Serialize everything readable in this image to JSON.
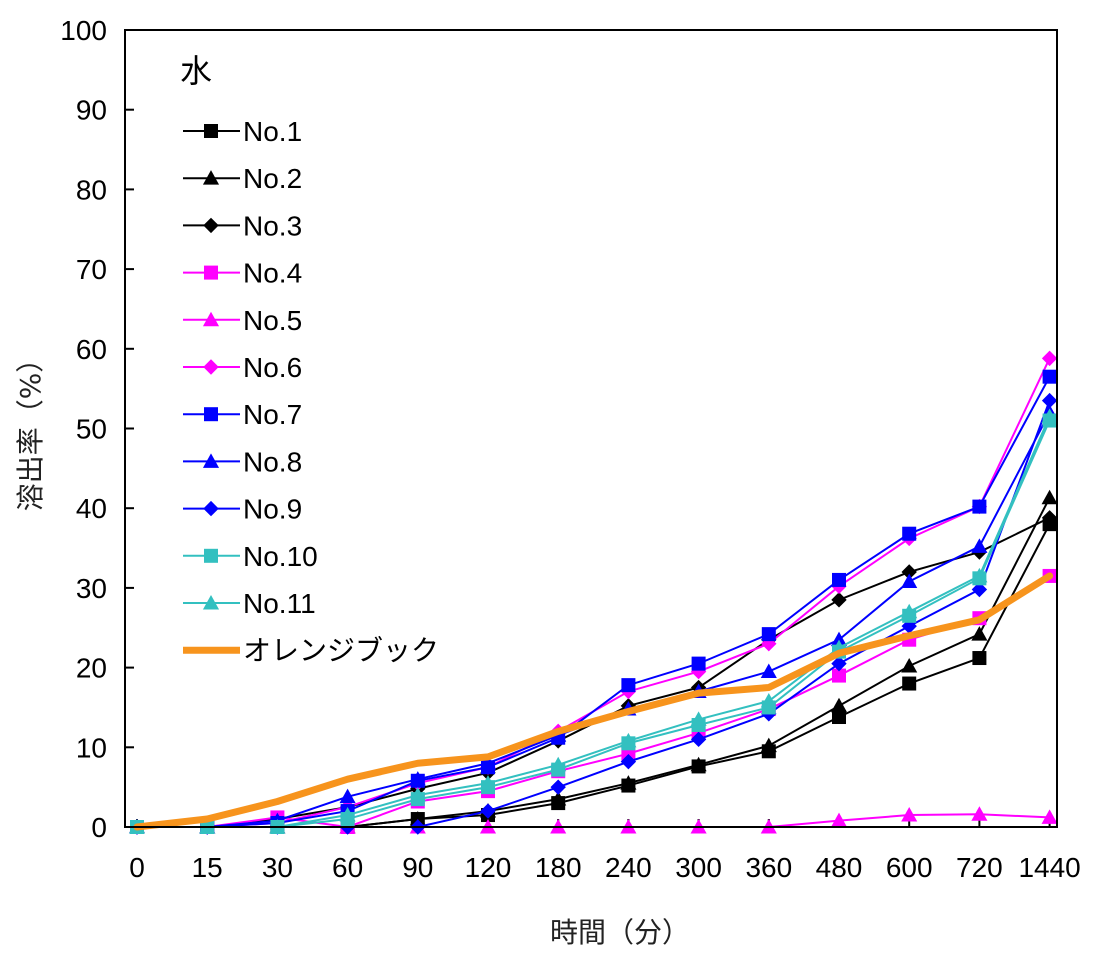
{
  "chart_data": {
    "type": "line",
    "title": "水",
    "xlabel": "時間（分）",
    "ylabel": "溶出率（%）",
    "ylim": [
      0,
      100
    ],
    "yticks": [
      0,
      10,
      20,
      30,
      40,
      50,
      60,
      70,
      80,
      90,
      100
    ],
    "categories": [
      "0",
      "15",
      "30",
      "60",
      "90",
      "120",
      "180",
      "240",
      "300",
      "360",
      "480",
      "600",
      "720",
      "1440"
    ],
    "grid": false,
    "legend_position": "top-left",
    "series": [
      {
        "name": "No.1",
        "color": "#000000",
        "marker": "square",
        "values": [
          0,
          0,
          0,
          0,
          1,
          1.5,
          3,
          5.2,
          7.6,
          9.5,
          13.8,
          18,
          21.2,
          38
        ]
      },
      {
        "name": "No.2",
        "color": "#000000",
        "marker": "triangle",
        "values": [
          0,
          0,
          0,
          0,
          1,
          2,
          3.5,
          5.5,
          7.8,
          10.2,
          15.2,
          20.2,
          24.2,
          41.3
        ]
      },
      {
        "name": "No.3",
        "color": "#000000",
        "marker": "diamond",
        "values": [
          0,
          0,
          1,
          2.5,
          4.8,
          6.8,
          10.8,
          15.2,
          17.5,
          23.5,
          28.5,
          32,
          34.5,
          38.8
        ]
      },
      {
        "name": "No.4",
        "color": "#ff00ff",
        "marker": "square",
        "values": [
          0,
          0,
          1.2,
          0,
          3.2,
          4.5,
          7,
          9.2,
          11.8,
          14.8,
          19,
          23.5,
          26.2,
          31.5
        ]
      },
      {
        "name": "No.5",
        "color": "#ff00ff",
        "marker": "triangle",
        "values": [
          0,
          0,
          0,
          0,
          0,
          0,
          0,
          0,
          0,
          0,
          0.8,
          1.5,
          1.6,
          1.2
        ]
      },
      {
        "name": "No.6",
        "color": "#ff00ff",
        "marker": "diamond",
        "values": [
          0,
          0,
          0.5,
          2.5,
          5.5,
          7.5,
          12,
          17,
          19.5,
          23,
          30.2,
          36.2,
          40.2,
          58.8
        ]
      },
      {
        "name": "No.7",
        "color": "#0000ff",
        "marker": "square",
        "values": [
          0,
          0,
          0.5,
          2,
          5.8,
          7.5,
          11.2,
          17.8,
          20.5,
          24.2,
          31,
          36.8,
          40.2,
          56.5
        ]
      },
      {
        "name": "No.8",
        "color": "#0000ff",
        "marker": "triangle",
        "values": [
          0,
          0,
          0.8,
          3.8,
          6,
          8,
          11.5,
          14.8,
          17,
          19.5,
          23.5,
          30.8,
          35.2,
          52
        ]
      },
      {
        "name": "No.9",
        "color": "#0000ff",
        "marker": "diamond",
        "values": [
          0,
          0,
          0,
          0,
          0,
          2,
          5,
          8.2,
          11,
          14.2,
          20.5,
          25.2,
          29.8,
          53.5
        ]
      },
      {
        "name": "No.10",
        "color": "#33c0c0",
        "marker": "square",
        "values": [
          0,
          0,
          0,
          1,
          3.5,
          5,
          7.2,
          10.5,
          12.8,
          15,
          22,
          26.5,
          31.2,
          51
        ]
      },
      {
        "name": "No.11",
        "color": "#33c0c0",
        "marker": "triangle",
        "values": [
          0,
          0,
          0,
          1.5,
          4,
          5.5,
          7.8,
          10.8,
          13.5,
          15.8,
          22.5,
          27,
          31.5,
          51.5
        ]
      },
      {
        "name": "オレンジブック",
        "color": "#f7941d",
        "marker": "none",
        "thick": true,
        "values": [
          0,
          1,
          3.2,
          6,
          8,
          8.8,
          12,
          14.5,
          16.8,
          17.5,
          21.8,
          24,
          26,
          31.5
        ]
      }
    ]
  }
}
